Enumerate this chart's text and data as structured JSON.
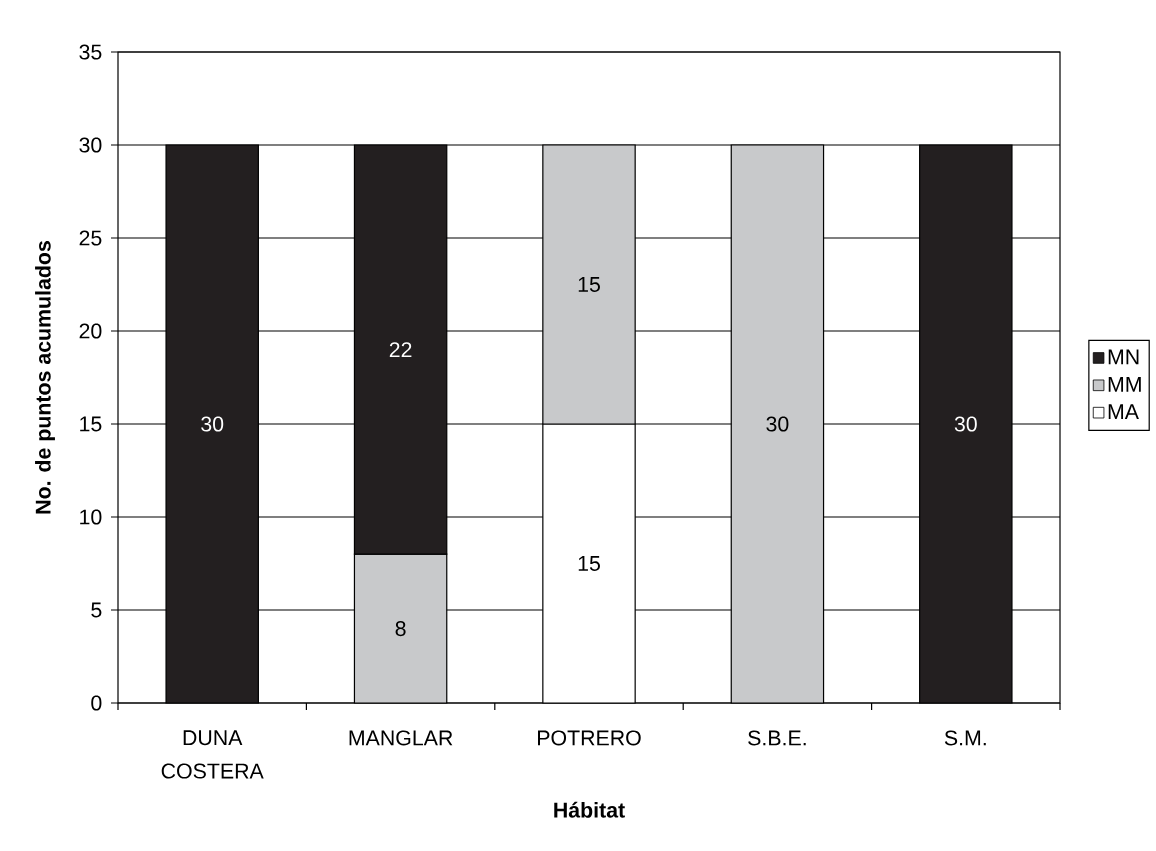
{
  "chart_data": {
    "type": "bar",
    "xlabel": "Hábitat",
    "ylabel": "No. de puntos acumulados",
    "categories": [
      "DUNA COSTERA",
      "MANGLAR",
      "POTRERO",
      "S.B.E.",
      "S.M."
    ],
    "stacked": true,
    "series": [
      {
        "name": "MA",
        "color": "#ffffff",
        "values": [
          null,
          null,
          15,
          null,
          null
        ]
      },
      {
        "name": "MM",
        "color": "#c8c9cb",
        "values": [
          null,
          8,
          15,
          30,
          null
        ]
      },
      {
        "name": "MN",
        "color": "#231f20",
        "values": [
          30,
          22,
          null,
          null,
          30
        ]
      }
    ],
    "ylim": [
      0,
      35
    ],
    "yticks": [
      0,
      5,
      10,
      15,
      20,
      25,
      30,
      35
    ],
    "grid": "y",
    "legend": "right",
    "data_labels": true
  }
}
